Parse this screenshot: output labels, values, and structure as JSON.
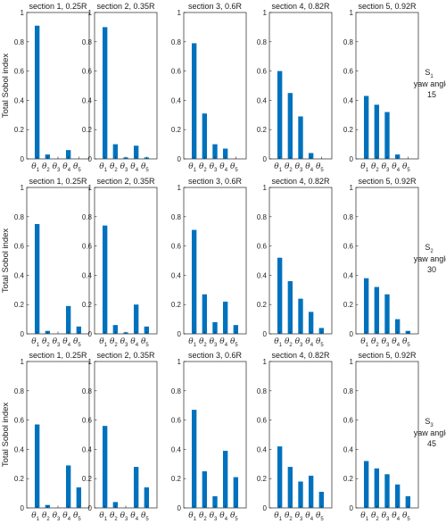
{
  "chart_data": {
    "type": "bar",
    "ylabel": "Total Sobol index",
    "ylim": [
      0,
      1
    ],
    "yticks": [
      "0",
      "0.2",
      "0.4",
      "0.6",
      "0.8",
      "1"
    ],
    "categories": [
      "θ1",
      "θ2",
      "θ3",
      "θ4",
      "θ5"
    ],
    "category_symbols": [
      {
        "symbol": "θ",
        "sub": "1"
      },
      {
        "symbol": "θ",
        "sub": "2"
      },
      {
        "symbol": "θ",
        "sub": "3"
      },
      {
        "symbol": "θ",
        "sub": "4"
      },
      {
        "symbol": "θ",
        "sub": "5"
      }
    ],
    "bar_color": "#0072bd",
    "section_titles": [
      "section 1, 0.25R",
      "section 2, 0.35R",
      "section 3, 0.6R",
      "section 4, 0.82R",
      "section 5, 0.92R"
    ],
    "rows": [
      {
        "label_symbol": "S",
        "label_sub": "1",
        "label_line2": "yaw angle",
        "label_line3": "15",
        "panels": [
          [
            0.91,
            0.03,
            0.0,
            0.06,
            0.0
          ],
          [
            0.9,
            0.1,
            0.01,
            0.09,
            0.01
          ],
          [
            0.79,
            0.31,
            0.1,
            0.07,
            0.0
          ],
          [
            0.6,
            0.45,
            0.29,
            0.04,
            0.0
          ],
          [
            0.43,
            0.37,
            0.32,
            0.03,
            0.0
          ]
        ]
      },
      {
        "label_symbol": "S",
        "label_sub": "2",
        "label_line2": "yaw angle",
        "label_line3": "30",
        "panels": [
          [
            0.75,
            0.02,
            0.0,
            0.19,
            0.05
          ],
          [
            0.74,
            0.06,
            0.01,
            0.2,
            0.05
          ],
          [
            0.71,
            0.27,
            0.08,
            0.22,
            0.06
          ],
          [
            0.52,
            0.36,
            0.24,
            0.15,
            0.04
          ],
          [
            0.38,
            0.32,
            0.27,
            0.1,
            0.02
          ]
        ]
      },
      {
        "label_symbol": "S",
        "label_sub": "3",
        "label_line2": "yaw angle",
        "label_line3": "45",
        "panels": [
          [
            0.57,
            0.02,
            0.0,
            0.29,
            0.14
          ],
          [
            0.56,
            0.04,
            0.0,
            0.28,
            0.14
          ],
          [
            0.67,
            0.25,
            0.08,
            0.39,
            0.21
          ],
          [
            0.42,
            0.28,
            0.18,
            0.22,
            0.11
          ],
          [
            0.32,
            0.27,
            0.23,
            0.16,
            0.08
          ]
        ]
      }
    ]
  }
}
